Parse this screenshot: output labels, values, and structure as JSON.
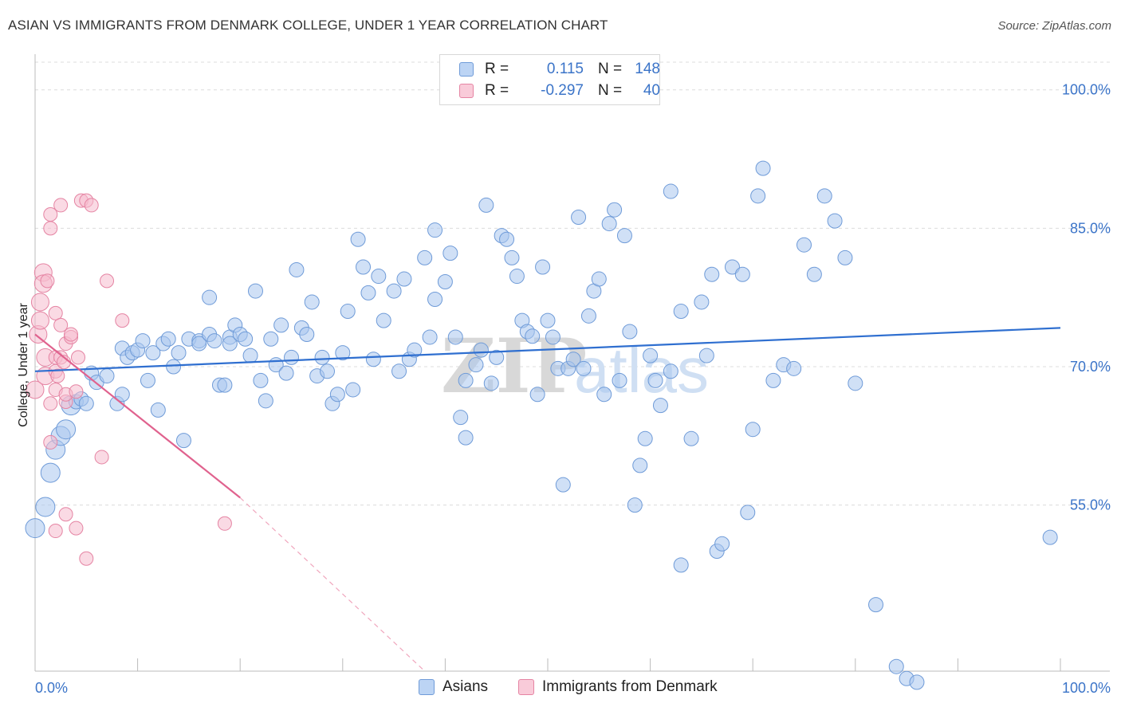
{
  "header": {
    "title": "ASIAN VS IMMIGRANTS FROM DENMARK COLLEGE, UNDER 1 YEAR CORRELATION CHART",
    "source": "Source: ZipAtlas.com"
  },
  "legend": {
    "r_label": "R =",
    "n_label": "N =",
    "rows": [
      {
        "r": "0.115",
        "n": "148"
      },
      {
        "r": "-0.297",
        "n": "40"
      }
    ]
  },
  "watermark": {
    "zip": "ZIP",
    "atlas": "atlas"
  },
  "chart_data": {
    "type": "scatter",
    "title": "ASIAN VS IMMIGRANTS FROM DENMARK COLLEGE, UNDER 1 YEAR CORRELATION CHART",
    "ylabel": "College, Under 1 year",
    "xlabel": "",
    "xlim": [
      0,
      100
    ],
    "ylim": [
      37,
      103
    ],
    "x_tick_labels": [
      "0.0%",
      "100.0%"
    ],
    "y_ticks": [
      55,
      70,
      85,
      100
    ],
    "y_tick_labels": [
      "55.0%",
      "70.0%",
      "85.0%",
      "100.0%"
    ],
    "grid": true,
    "legend_placement": "top-center",
    "series": [
      {
        "name": "Asians",
        "color": "#a9c6ef",
        "stroke": "#6f9bd8",
        "line_color": "#2f6fd0",
        "trend": {
          "x0": 0,
          "y0": 69.5,
          "x1": 100,
          "y1": 74.2
        },
        "points": [
          [
            0,
            52.5
          ],
          [
            1,
            54.8
          ],
          [
            1.5,
            58.5
          ],
          [
            2,
            61
          ],
          [
            2.5,
            62.5
          ],
          [
            3,
            63.2
          ],
          [
            3.5,
            65.8
          ],
          [
            4,
            66.2
          ],
          [
            4.5,
            66.5
          ],
          [
            5,
            66
          ],
          [
            5.5,
            69.3
          ],
          [
            6,
            68.3
          ],
          [
            7,
            69
          ],
          [
            8,
            66
          ],
          [
            8.5,
            67
          ],
          [
            8.5,
            72
          ],
          [
            9,
            71
          ],
          [
            9.5,
            71.5
          ],
          [
            10,
            71.8
          ],
          [
            11,
            68.5
          ],
          [
            10.5,
            72.8
          ],
          [
            11.5,
            71.5
          ],
          [
            12,
            65.3
          ],
          [
            12.5,
            72.5
          ],
          [
            13,
            73
          ],
          [
            13.5,
            70
          ],
          [
            14,
            71.5
          ],
          [
            14.5,
            62
          ],
          [
            15,
            73
          ],
          [
            16,
            72.8
          ],
          [
            16,
            72.5
          ],
          [
            17,
            73.5
          ],
          [
            17,
            77.5
          ],
          [
            17.5,
            72.8
          ],
          [
            18,
            68
          ],
          [
            19,
            73.2
          ],
          [
            18.5,
            68
          ],
          [
            19,
            72.5
          ],
          [
            19.5,
            74.5
          ],
          [
            20,
            73.5
          ],
          [
            20.5,
            73
          ],
          [
            21,
            71.2
          ],
          [
            21.5,
            78.2
          ],
          [
            22,
            68.5
          ],
          [
            22.5,
            66.3
          ],
          [
            23,
            73
          ],
          [
            23.5,
            70.2
          ],
          [
            24,
            74.5
          ],
          [
            24.5,
            69.3
          ],
          [
            25,
            71
          ],
          [
            25.5,
            80.5
          ],
          [
            26,
            74.2
          ],
          [
            26.5,
            73.5
          ],
          [
            27,
            77
          ],
          [
            27.5,
            69
          ],
          [
            28,
            71
          ],
          [
            28.5,
            69.5
          ],
          [
            29,
            66
          ],
          [
            29.5,
            67
          ],
          [
            30,
            71.5
          ],
          [
            30.5,
            76
          ],
          [
            31,
            67.5
          ],
          [
            31.5,
            83.8
          ],
          [
            32,
            80.8
          ],
          [
            32.5,
            78
          ],
          [
            33,
            70.8
          ],
          [
            33.5,
            79.8
          ],
          [
            34,
            75
          ],
          [
            35,
            78.2
          ],
          [
            35.5,
            69.5
          ],
          [
            36,
            79.5
          ],
          [
            36.5,
            70.8
          ],
          [
            37,
            71.8
          ],
          [
            38,
            81.8
          ],
          [
            38.5,
            73.2
          ],
          [
            39,
            84.8
          ],
          [
            39,
            77.3
          ],
          [
            40,
            79.2
          ],
          [
            40.5,
            82.3
          ],
          [
            41,
            73.2
          ],
          [
            41.5,
            64.5
          ],
          [
            42,
            62.3
          ],
          [
            42,
            68.5
          ],
          [
            43,
            70.2
          ],
          [
            43.5,
            71.8
          ],
          [
            44,
            87.5
          ],
          [
            44.5,
            68.2
          ],
          [
            45,
            71
          ],
          [
            45.5,
            84.2
          ],
          [
            46,
            83.8
          ],
          [
            46.5,
            81.8
          ],
          [
            47,
            79.8
          ],
          [
            47.5,
            75
          ],
          [
            48,
            73.8
          ],
          [
            48.5,
            73.3
          ],
          [
            49,
            67
          ],
          [
            49.5,
            80.8
          ],
          [
            50,
            75
          ],
          [
            50.5,
            73.2
          ],
          [
            51,
            69.8
          ],
          [
            51.5,
            57.2
          ],
          [
            52,
            69.8
          ],
          [
            52.5,
            70.8
          ],
          [
            53,
            86.2
          ],
          [
            53.5,
            69.8
          ],
          [
            54,
            75.5
          ],
          [
            54.5,
            78.2
          ],
          [
            55,
            79.5
          ],
          [
            55.5,
            67
          ],
          [
            56,
            85.5
          ],
          [
            56.5,
            87
          ],
          [
            57,
            68.5
          ],
          [
            57.5,
            84.2
          ],
          [
            58,
            73.8
          ],
          [
            58.5,
            55
          ],
          [
            59,
            59.3
          ],
          [
            59.5,
            62.2
          ],
          [
            60,
            71.2
          ],
          [
            60.5,
            68.5
          ],
          [
            61,
            65.8
          ],
          [
            62,
            89
          ],
          [
            62,
            69.5
          ],
          [
            63,
            76
          ],
          [
            64,
            62.2
          ],
          [
            65,
            77
          ],
          [
            65.5,
            71.2
          ],
          [
            66,
            80
          ],
          [
            66.5,
            50
          ],
          [
            67,
            50.8
          ],
          [
            68,
            80.8
          ],
          [
            69,
            80
          ],
          [
            69.5,
            54.2
          ],
          [
            70,
            63.2
          ],
          [
            70.5,
            88.5
          ],
          [
            71,
            91.5
          ],
          [
            72,
            68.5
          ],
          [
            73,
            70.2
          ],
          [
            74,
            69.8
          ],
          [
            75,
            83.2
          ],
          [
            76,
            80
          ],
          [
            77,
            88.5
          ],
          [
            78,
            85.8
          ],
          [
            79,
            81.8
          ],
          [
            80,
            68.2
          ],
          [
            82,
            44.2
          ],
          [
            84,
            37.5
          ],
          [
            85,
            36.2
          ],
          [
            86,
            35.8
          ],
          [
            99,
            51.5
          ],
          [
            63,
            48.5
          ]
        ]
      },
      {
        "name": "Immigrants from Denmark",
        "color": "#f6bccd",
        "stroke": "#e584a3",
        "line_color": "#e0628e",
        "trend": {
          "x0": 0,
          "y0": 73.5,
          "x1": 20,
          "y1": 55.8
        },
        "trend_dashed": {
          "x0": 20,
          "y0": 55.8,
          "x1": 38,
          "y1": 37
        },
        "points": [
          [
            0,
            67.5
          ],
          [
            0.3,
            73.5
          ],
          [
            0.5,
            75
          ],
          [
            0.5,
            77
          ],
          [
            0.8,
            80.2
          ],
          [
            0.8,
            79
          ],
          [
            1,
            71
          ],
          [
            1,
            69
          ],
          [
            1.2,
            79.3
          ],
          [
            1.5,
            61.8
          ],
          [
            1.5,
            66
          ],
          [
            1.5,
            85
          ],
          [
            1.5,
            86.5
          ],
          [
            2,
            67.5
          ],
          [
            2,
            52.2
          ],
          [
            2,
            71
          ],
          [
            2,
            69.5
          ],
          [
            2,
            75.8
          ],
          [
            2.2,
            69
          ],
          [
            2.5,
            74.5
          ],
          [
            2.5,
            71
          ],
          [
            2.5,
            87.5
          ],
          [
            2.8,
            70.5
          ],
          [
            3,
            66.2
          ],
          [
            3,
            67
          ],
          [
            3,
            72.5
          ],
          [
            3,
            54
          ],
          [
            3.5,
            73.2
          ],
          [
            3.5,
            73.5
          ],
          [
            4,
            67.3
          ],
          [
            4,
            52.5
          ],
          [
            4.2,
            71
          ],
          [
            4.5,
            88
          ],
          [
            5,
            49.2
          ],
          [
            5,
            88
          ],
          [
            5.5,
            87.5
          ],
          [
            6.5,
            60.2
          ],
          [
            7,
            79.3
          ],
          [
            8.5,
            75
          ],
          [
            18.5,
            53
          ]
        ]
      }
    ]
  },
  "bottom_legend": [
    {
      "label": "Asians"
    },
    {
      "label": "Immigrants from Denmark"
    }
  ]
}
